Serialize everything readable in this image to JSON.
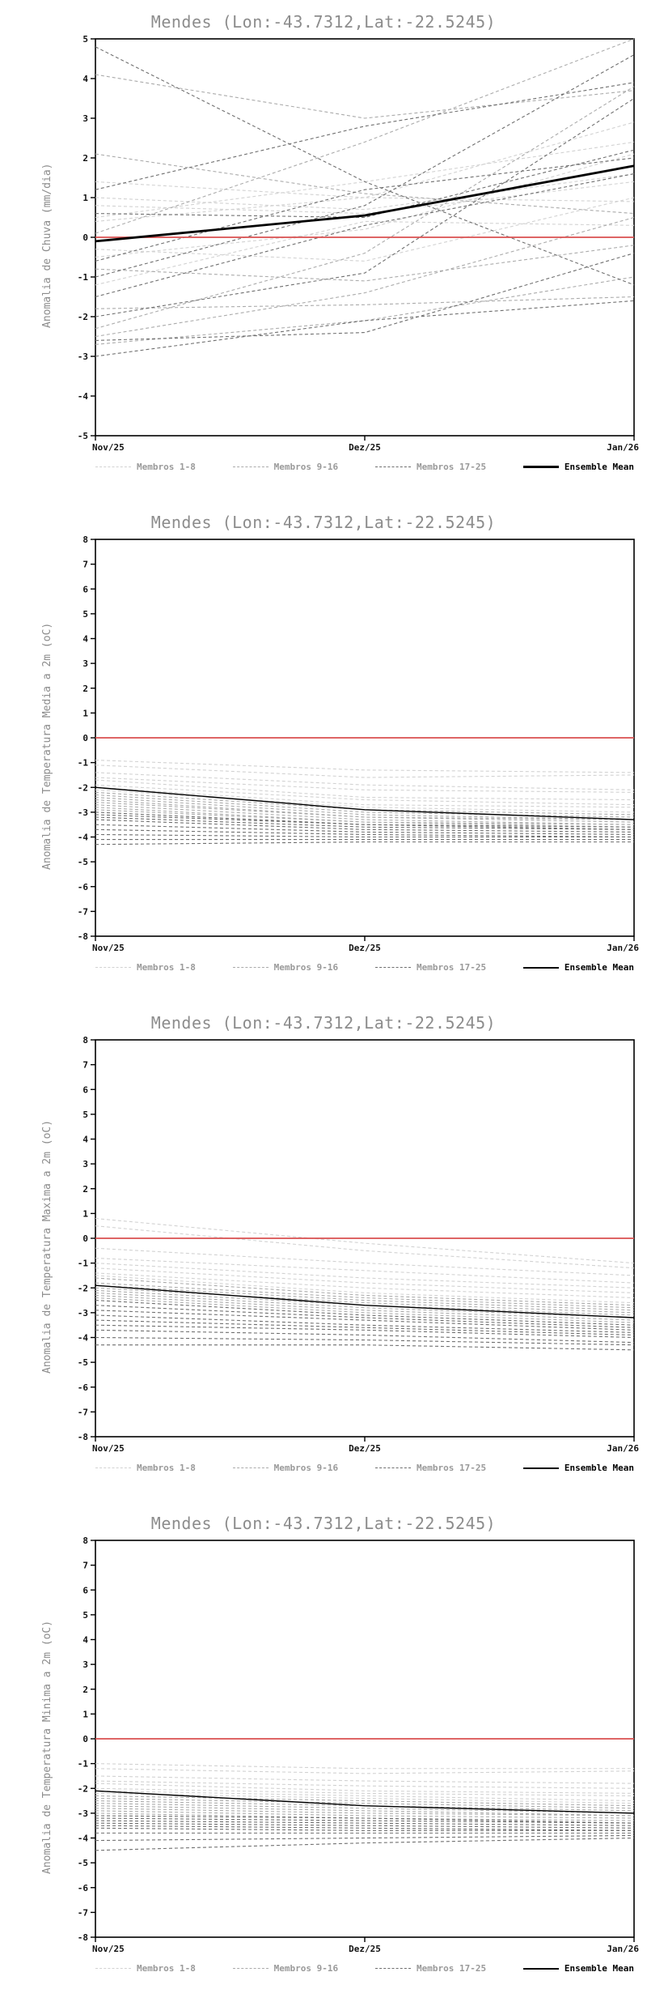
{
  "style": {
    "background": "#ffffff",
    "title_color": "#8c8c8c",
    "axis_label_color": "#8c8c8c",
    "tick_color": "#111111",
    "zero_line_color": "#d94f4f",
    "group_colors": [
      "#d2d2d2",
      "#ababab",
      "#6f6f6f"
    ],
    "mean_color": "#000000"
  },
  "legend": {
    "items": [
      {
        "label": "Membros 1-8",
        "color": "#d2d2d2",
        "label_color": "#9a9a9a",
        "dash": "dashed"
      },
      {
        "label": "Membros 9-16",
        "color": "#ababab",
        "label_color": "#9a9a9a",
        "dash": "dashed"
      },
      {
        "label": "Membros 17-25",
        "color": "#6f6f6f",
        "label_color": "#9a9a9a",
        "dash": "dashed"
      },
      {
        "label": "Ensemble Mean",
        "color": "#000000",
        "label_color": "#000000",
        "dash": "solid"
      }
    ]
  },
  "chart_data": [
    {
      "type": "line",
      "title": "Mendes (Lon:-43.7312,Lat:-22.5245)",
      "ylabel": "Anomalia de Chuva (mm/dia)",
      "ylim": [
        -5,
        5
      ],
      "ytick_step": 1,
      "xticks": [
        "Nov/25",
        "Dez/25",
        "Jan/26"
      ],
      "grid": false,
      "legend_position": "bottom",
      "zero_line": 0,
      "mean_width": 2.8,
      "ensemble_mean": [
        -0.1,
        0.55,
        1.8
      ],
      "members": [
        {
          "group": 1,
          "values": [
            0.8,
            0.6,
            1.4
          ]
        },
        {
          "group": 1,
          "values": [
            0.4,
            1.0,
            0.9
          ]
        },
        {
          "group": 1,
          "values": [
            -0.5,
            0.2,
            2.1
          ]
        },
        {
          "group": 1,
          "values": [
            1.0,
            0.7,
            1.6
          ]
        },
        {
          "group": 1,
          "values": [
            -1.2,
            0.4,
            0.3
          ]
        },
        {
          "group": 1,
          "values": [
            0.5,
            1.4,
            2.4
          ]
        },
        {
          "group": 1,
          "values": [
            -0.3,
            -0.6,
            1.0
          ]
        },
        {
          "group": 1,
          "values": [
            1.4,
            1.0,
            2.9
          ]
        },
        {
          "group": 2,
          "values": [
            4.1,
            3.0,
            3.7
          ]
        },
        {
          "group": 2,
          "values": [
            -2.5,
            -1.4,
            0.5
          ]
        },
        {
          "group": 2,
          "values": [
            -1.8,
            -1.7,
            -1.5
          ]
        },
        {
          "group": 2,
          "values": [
            0.1,
            2.4,
            5.0
          ]
        },
        {
          "group": 2,
          "values": [
            -2.3,
            -0.4,
            3.8
          ]
        },
        {
          "group": 2,
          "values": [
            -0.8,
            -1.1,
            -0.2
          ]
        },
        {
          "group": 2,
          "values": [
            2.1,
            1.1,
            0.6
          ]
        },
        {
          "group": 2,
          "values": [
            -2.7,
            -2.1,
            -1.0
          ]
        },
        {
          "group": 3,
          "values": [
            4.8,
            1.4,
            -1.2
          ]
        },
        {
          "group": 3,
          "values": [
            -1.0,
            0.8,
            4.6
          ]
        },
        {
          "group": 3,
          "values": [
            -2.0,
            -0.9,
            3.5
          ]
        },
        {
          "group": 3,
          "values": [
            0.6,
            0.5,
            2.2
          ]
        },
        {
          "group": 3,
          "values": [
            -1.5,
            0.3,
            1.6
          ]
        },
        {
          "group": 3,
          "values": [
            -3.0,
            -2.1,
            -1.6
          ]
        },
        {
          "group": 3,
          "values": [
            1.2,
            2.8,
            3.9
          ]
        },
        {
          "group": 3,
          "values": [
            -0.6,
            1.2,
            2.0
          ]
        },
        {
          "group": 3,
          "values": [
            -2.6,
            -2.4,
            -0.4
          ]
        }
      ]
    },
    {
      "type": "line",
      "title": "Mendes (Lon:-43.7312,Lat:-22.5245)",
      "ylabel": "Anomalia de Temperatura Media a 2m (oC)",
      "ylim": [
        -8,
        8
      ],
      "ytick_step": 1,
      "xticks": [
        "Nov/25",
        "Dez/25",
        "Jan/26"
      ],
      "grid": false,
      "legend_position": "bottom",
      "zero_line": 0,
      "mean_width": 1.4,
      "ensemble_mean": [
        -2.0,
        -2.9,
        -3.3
      ],
      "members": [
        {
          "group": 1,
          "values": [
            -0.9,
            -1.3,
            -1.4
          ]
        },
        {
          "group": 1,
          "values": [
            -1.1,
            -1.6,
            -1.5
          ]
        },
        {
          "group": 1,
          "values": [
            -1.4,
            -1.9,
            -2.1
          ]
        },
        {
          "group": 1,
          "values": [
            -1.6,
            -2.1,
            -2.2
          ]
        },
        {
          "group": 1,
          "values": [
            -1.7,
            -2.4,
            -2.5
          ]
        },
        {
          "group": 1,
          "values": [
            -1.9,
            -2.5,
            -2.7
          ]
        },
        {
          "group": 1,
          "values": [
            -2.0,
            -2.7,
            -2.8
          ]
        },
        {
          "group": 1,
          "values": [
            -2.1,
            -2.8,
            -3.0
          ]
        },
        {
          "group": 2,
          "values": [
            -2.2,
            -2.9,
            -3.1
          ]
        },
        {
          "group": 2,
          "values": [
            -2.3,
            -3.0,
            -3.2
          ]
        },
        {
          "group": 2,
          "values": [
            -2.4,
            -3.1,
            -3.3
          ]
        },
        {
          "group": 2,
          "values": [
            -2.5,
            -3.2,
            -3.3
          ]
        },
        {
          "group": 2,
          "values": [
            -2.6,
            -3.2,
            -3.4
          ]
        },
        {
          "group": 2,
          "values": [
            -2.7,
            -3.3,
            -3.5
          ]
        },
        {
          "group": 2,
          "values": [
            -2.8,
            -3.4,
            -3.5
          ]
        },
        {
          "group": 2,
          "values": [
            -2.9,
            -3.4,
            -3.6
          ]
        },
        {
          "group": 3,
          "values": [
            -3.0,
            -3.5,
            -3.6
          ]
        },
        {
          "group": 3,
          "values": [
            -3.1,
            -3.5,
            -3.7
          ]
        },
        {
          "group": 3,
          "values": [
            -3.2,
            -3.6,
            -3.7
          ]
        },
        {
          "group": 3,
          "values": [
            -3.3,
            -3.7,
            -3.8
          ]
        },
        {
          "group": 3,
          "values": [
            -3.5,
            -3.8,
            -3.9
          ]
        },
        {
          "group": 3,
          "values": [
            -3.7,
            -3.9,
            -4.0
          ]
        },
        {
          "group": 3,
          "values": [
            -3.9,
            -4.0,
            -4.0
          ]
        },
        {
          "group": 3,
          "values": [
            -4.1,
            -4.1,
            -4.1
          ]
        },
        {
          "group": 3,
          "values": [
            -4.3,
            -4.2,
            -4.2
          ]
        }
      ]
    },
    {
      "type": "line",
      "title": "Mendes (Lon:-43.7312,Lat:-22.5245)",
      "ylabel": "Anomalia de Temperatura Maxima a 2m (oC)",
      "ylim": [
        -8,
        8
      ],
      "ytick_step": 1,
      "xticks": [
        "Nov/25",
        "Dez/25",
        "Jan/26"
      ],
      "grid": false,
      "legend_position": "bottom",
      "zero_line": 0,
      "mean_width": 1.4,
      "ensemble_mean": [
        -1.9,
        -2.7,
        -3.2
      ],
      "members": [
        {
          "group": 1,
          "values": [
            0.8,
            -0.2,
            -1.0
          ]
        },
        {
          "group": 1,
          "values": [
            0.5,
            -0.5,
            -1.2
          ]
        },
        {
          "group": 1,
          "values": [
            -0.4,
            -1.0,
            -1.5
          ]
        },
        {
          "group": 1,
          "values": [
            -0.8,
            -1.3,
            -1.8
          ]
        },
        {
          "group": 1,
          "values": [
            -1.0,
            -1.6,
            -2.0
          ]
        },
        {
          "group": 1,
          "values": [
            -1.2,
            -1.8,
            -2.2
          ]
        },
        {
          "group": 1,
          "values": [
            -1.4,
            -2.0,
            -2.4
          ]
        },
        {
          "group": 1,
          "values": [
            -1.5,
            -2.2,
            -2.6
          ]
        },
        {
          "group": 2,
          "values": [
            -1.6,
            -2.3,
            -2.7
          ]
        },
        {
          "group": 2,
          "values": [
            -1.8,
            -2.4,
            -2.8
          ]
        },
        {
          "group": 2,
          "values": [
            -1.9,
            -2.5,
            -2.9
          ]
        },
        {
          "group": 2,
          "values": [
            -2.0,
            -2.6,
            -3.0
          ]
        },
        {
          "group": 2,
          "values": [
            -2.1,
            -2.7,
            -3.1
          ]
        },
        {
          "group": 2,
          "values": [
            -2.2,
            -2.8,
            -3.2
          ]
        },
        {
          "group": 2,
          "values": [
            -2.3,
            -2.9,
            -3.3
          ]
        },
        {
          "group": 2,
          "values": [
            -2.4,
            -3.0,
            -3.4
          ]
        },
        {
          "group": 3,
          "values": [
            -2.5,
            -3.1,
            -3.5
          ]
        },
        {
          "group": 3,
          "values": [
            -2.7,
            -3.2,
            -3.6
          ]
        },
        {
          "group": 3,
          "values": [
            -2.9,
            -3.3,
            -3.7
          ]
        },
        {
          "group": 3,
          "values": [
            -3.1,
            -3.5,
            -3.8
          ]
        },
        {
          "group": 3,
          "values": [
            -3.3,
            -3.6,
            -3.9
          ]
        },
        {
          "group": 3,
          "values": [
            -3.5,
            -3.7,
            -4.0
          ]
        },
        {
          "group": 3,
          "values": [
            -3.7,
            -3.9,
            -4.2
          ]
        },
        {
          "group": 3,
          "values": [
            -4.0,
            -4.1,
            -4.3
          ]
        },
        {
          "group": 3,
          "values": [
            -4.3,
            -4.3,
            -4.5
          ]
        }
      ]
    },
    {
      "type": "line",
      "title": "Mendes (Lon:-43.7312,Lat:-22.5245)",
      "ylabel": "Anomalia de Temperatura Minima a 2m (oC)",
      "ylim": [
        -8,
        8
      ],
      "ytick_step": 1,
      "xticks": [
        "Nov/25",
        "Dez/25",
        "Jan/26"
      ],
      "grid": false,
      "legend_position": "bottom",
      "zero_line": 0,
      "mean_width": 1.4,
      "ensemble_mean": [
        -2.1,
        -2.7,
        -3.0
      ],
      "members": [
        {
          "group": 1,
          "values": [
            -1.0,
            -1.2,
            -1.2
          ]
        },
        {
          "group": 1,
          "values": [
            -1.2,
            -1.4,
            -1.3
          ]
        },
        {
          "group": 1,
          "values": [
            -1.5,
            -1.7,
            -1.8
          ]
        },
        {
          "group": 1,
          "values": [
            -1.7,
            -1.9,
            -2.0
          ]
        },
        {
          "group": 1,
          "values": [
            -1.8,
            -2.1,
            -2.2
          ]
        },
        {
          "group": 1,
          "values": [
            -2.0,
            -2.2,
            -2.3
          ]
        },
        {
          "group": 1,
          "values": [
            -2.1,
            -2.3,
            -2.5
          ]
        },
        {
          "group": 1,
          "values": [
            -2.2,
            -2.4,
            -2.6
          ]
        },
        {
          "group": 2,
          "values": [
            -2.3,
            -2.5,
            -2.7
          ]
        },
        {
          "group": 2,
          "values": [
            -2.4,
            -2.6,
            -2.8
          ]
        },
        {
          "group": 2,
          "values": [
            -2.5,
            -2.7,
            -2.9
          ]
        },
        {
          "group": 2,
          "values": [
            -2.6,
            -2.8,
            -3.0
          ]
        },
        {
          "group": 2,
          "values": [
            -2.7,
            -2.9,
            -3.1
          ]
        },
        {
          "group": 2,
          "values": [
            -2.8,
            -3.0,
            -3.1
          ]
        },
        {
          "group": 2,
          "values": [
            -2.9,
            -3.1,
            -3.2
          ]
        },
        {
          "group": 2,
          "values": [
            -3.0,
            -3.2,
            -3.3
          ]
        },
        {
          "group": 3,
          "values": [
            -3.1,
            -3.2,
            -3.4
          ]
        },
        {
          "group": 3,
          "values": [
            -3.2,
            -3.3,
            -3.4
          ]
        },
        {
          "group": 3,
          "values": [
            -3.3,
            -3.4,
            -3.5
          ]
        },
        {
          "group": 3,
          "values": [
            -3.4,
            -3.5,
            -3.6
          ]
        },
        {
          "group": 3,
          "values": [
            -3.5,
            -3.6,
            -3.7
          ]
        },
        {
          "group": 3,
          "values": [
            -3.6,
            -3.7,
            -3.7
          ]
        },
        {
          "group": 3,
          "values": [
            -3.8,
            -3.8,
            -3.8
          ]
        },
        {
          "group": 3,
          "values": [
            -4.1,
            -4.0,
            -3.9
          ]
        },
        {
          "group": 3,
          "values": [
            -4.5,
            -4.2,
            -4.0
          ]
        }
      ]
    }
  ]
}
